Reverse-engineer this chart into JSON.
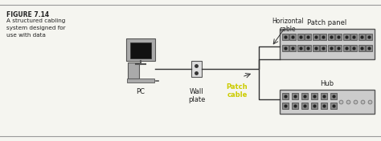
{
  "bg_color": "#f5f5f0",
  "border_color": "#999999",
  "title_text": "FIGURE 7.14",
  "subtitle_lines": [
    "A structured cabling",
    "system designed for",
    "use with data"
  ],
  "label_pc": "PC",
  "label_wall": "Wall\nplate",
  "label_horiz": "Horizontal\ncable",
  "label_patch_panel": "Patch panel",
  "label_hub": "Hub",
  "label_patch_cable": "Patch\ncable",
  "patch_cable_color": "#cccc00",
  "text_color": "#222222",
  "device_color": "#bbbbbb",
  "device_edge": "#555555",
  "port_color": "#333333",
  "line_color": "#333333"
}
